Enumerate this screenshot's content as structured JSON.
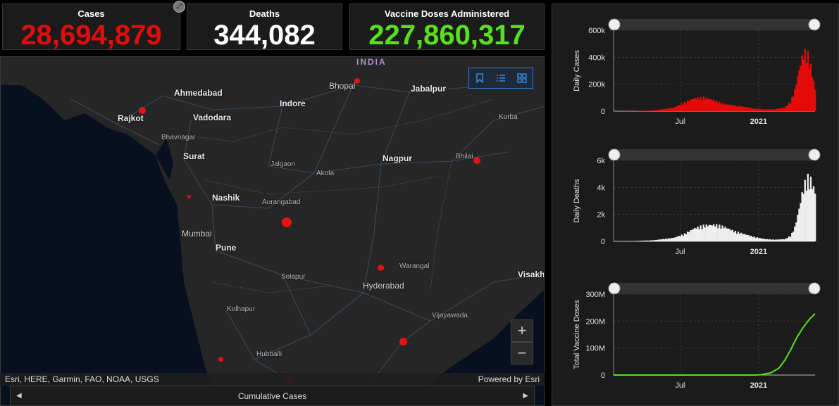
{
  "stats": [
    {
      "title": "Cases",
      "value": "28,694,879",
      "color": "#e50b0b"
    },
    {
      "title": "Deaths",
      "value": "344,082",
      "color": "#ffffff"
    },
    {
      "title": "Vaccine Doses Administered",
      "value": "227,860,317",
      "color": "#56e21b"
    }
  ],
  "map": {
    "country_label": "INDIA",
    "cities": [
      {
        "name": "Ahmedabad",
        "type": "major"
      },
      {
        "name": "Bhopal",
        "type": "normal"
      },
      {
        "name": "Jabalpur",
        "type": "major"
      },
      {
        "name": "Rajkot",
        "type": "major"
      },
      {
        "name": "Vadodara",
        "type": "major"
      },
      {
        "name": "Indore",
        "type": "major"
      },
      {
        "name": "Korba",
        "type": "minor"
      },
      {
        "name": "Bhavnagar",
        "type": "minor"
      },
      {
        "name": "Surat",
        "type": "major"
      },
      {
        "name": "Jalgaon",
        "type": "minor"
      },
      {
        "name": "Akola",
        "type": "minor"
      },
      {
        "name": "Nagpur",
        "type": "major"
      },
      {
        "name": "Bhilai",
        "type": "minor"
      },
      {
        "name": "Nashik",
        "type": "major"
      },
      {
        "name": "Aurangabad",
        "type": "minor"
      },
      {
        "name": "Mumbai",
        "type": "normal"
      },
      {
        "name": "Pune",
        "type": "major"
      },
      {
        "name": "Warangal",
        "type": "minor"
      },
      {
        "name": "Solapur",
        "type": "minor"
      },
      {
        "name": "Hyderabad",
        "type": "normal"
      },
      {
        "name": "Visakh",
        "type": "major"
      },
      {
        "name": "Kolhapur",
        "type": "minor"
      },
      {
        "name": "Vijayawada",
        "type": "minor"
      },
      {
        "name": "Hubballi",
        "type": "minor"
      }
    ],
    "dot_color": "#e01414",
    "tools": [
      "bookmark-icon",
      "legend-list-icon",
      "basemap-gallery-icon"
    ],
    "zoom_in": "+",
    "zoom_out": "−",
    "attribution": "Esri, HERE, Garmin, FAO, NOAA, USGS",
    "powered_by": "Powered by Esri"
  },
  "bottom_bar": {
    "label": "Cumulative Cases",
    "prev": "◀",
    "next": "▶"
  },
  "chart_data": [
    {
      "type": "area",
      "ylabel": "Daily Cases",
      "y_ticks": [
        "600k",
        "400k",
        "200k",
        "0"
      ],
      "x_ticks": [
        "Jul",
        "2021"
      ],
      "ylim": [
        0,
        600000
      ],
      "color": "#e50b0b",
      "x": [
        0,
        0.1,
        0.2,
        0.3,
        0.35,
        0.4,
        0.45,
        0.5,
        0.55,
        0.6,
        0.65,
        0.7,
        0.75,
        0.8,
        0.85,
        0.88,
        0.9,
        0.92,
        0.94,
        0.96,
        0.98,
        1.0
      ],
      "values": [
        0,
        1000,
        5000,
        25000,
        60000,
        90000,
        95000,
        75000,
        50000,
        40000,
        30000,
        18000,
        12000,
        14000,
        25000,
        70000,
        150000,
        280000,
        400000,
        410000,
        300000,
        150000
      ]
    },
    {
      "type": "bar",
      "ylabel": "Daily Deaths",
      "y_ticks": [
        "6k",
        "4k",
        "2k",
        "0"
      ],
      "x_ticks": [
        "Jul",
        "2021"
      ],
      "ylim": [
        0,
        6000
      ],
      "color": "#eeeeee",
      "x": [
        0,
        0.1,
        0.2,
        0.3,
        0.35,
        0.4,
        0.45,
        0.5,
        0.55,
        0.6,
        0.65,
        0.7,
        0.75,
        0.8,
        0.85,
        0.88,
        0.9,
        0.92,
        0.94,
        0.96,
        0.98,
        1.0
      ],
      "values": [
        0,
        20,
        80,
        250,
        500,
        900,
        1100,
        1150,
        1000,
        700,
        500,
        300,
        160,
        120,
        150,
        400,
        1000,
        2200,
        3600,
        4400,
        4200,
        3400
      ]
    },
    {
      "type": "line",
      "ylabel": "Total Vaccine Doses",
      "y_ticks": [
        "300M",
        "200M",
        "100M",
        "0"
      ],
      "x_ticks": [
        "Jul",
        "2021"
      ],
      "ylim": [
        0,
        300000000
      ],
      "color": "#56e21b",
      "x": [
        0,
        0.3,
        0.5,
        0.7,
        0.73,
        0.78,
        0.82,
        0.85,
        0.88,
        0.91,
        0.94,
        0.97,
        1.0
      ],
      "values": [
        0,
        0,
        0,
        0,
        1000000,
        8000000,
        25000000,
        55000000,
        95000000,
        140000000,
        175000000,
        205000000,
        227860317
      ]
    }
  ]
}
